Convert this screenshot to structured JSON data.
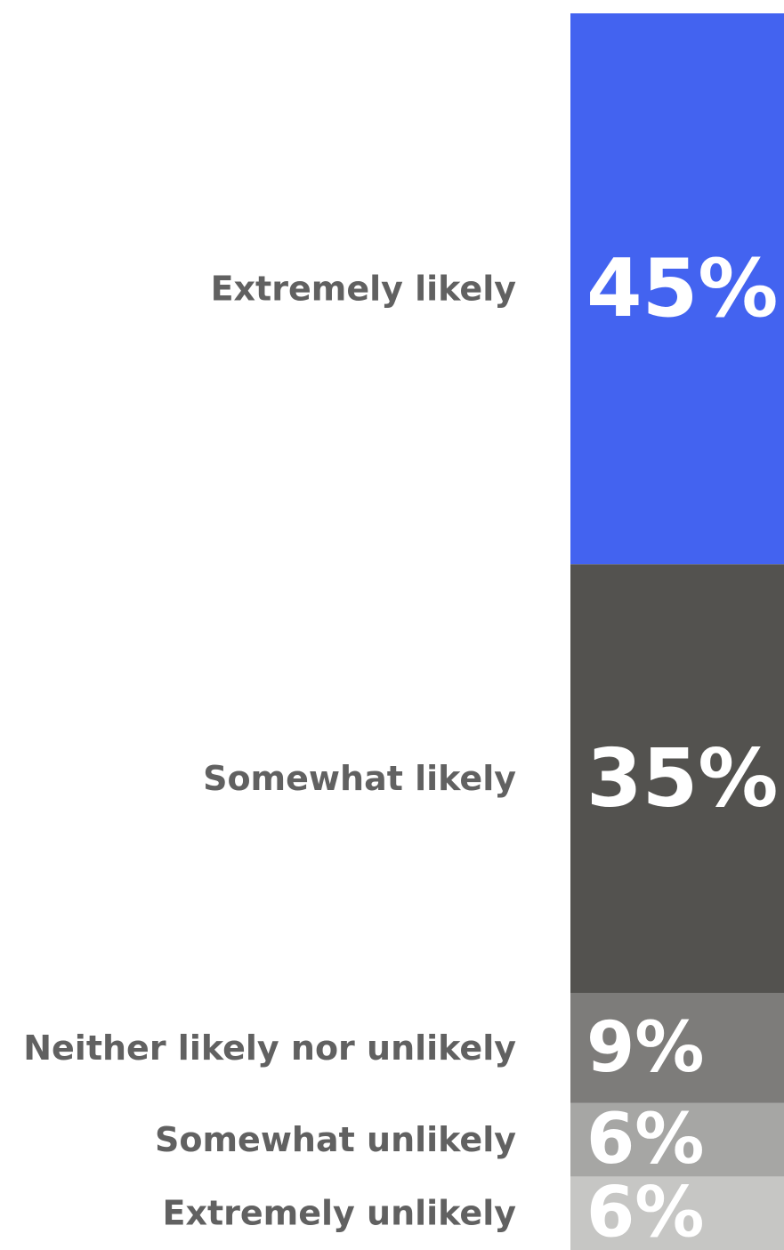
{
  "chart_data": {
    "type": "bar",
    "orientation": "stacked-vertical",
    "categories": [
      "Extremely likely",
      "Somewhat likely",
      "Neither likely nor unlikely",
      "Somewhat unlikely",
      "Extremely unlikely"
    ],
    "values": [
      45,
      35,
      9,
      6,
      6
    ],
    "value_labels": [
      "45%",
      "35%",
      "9%",
      "6%",
      "6%"
    ],
    "colors": [
      "#4363f0",
      "#53524f",
      "#7d7c7a",
      "#a6a6a4",
      "#c6c6c4"
    ],
    "label_color": "#616161",
    "value_label_color": "#ffffff",
    "unit": "%"
  }
}
